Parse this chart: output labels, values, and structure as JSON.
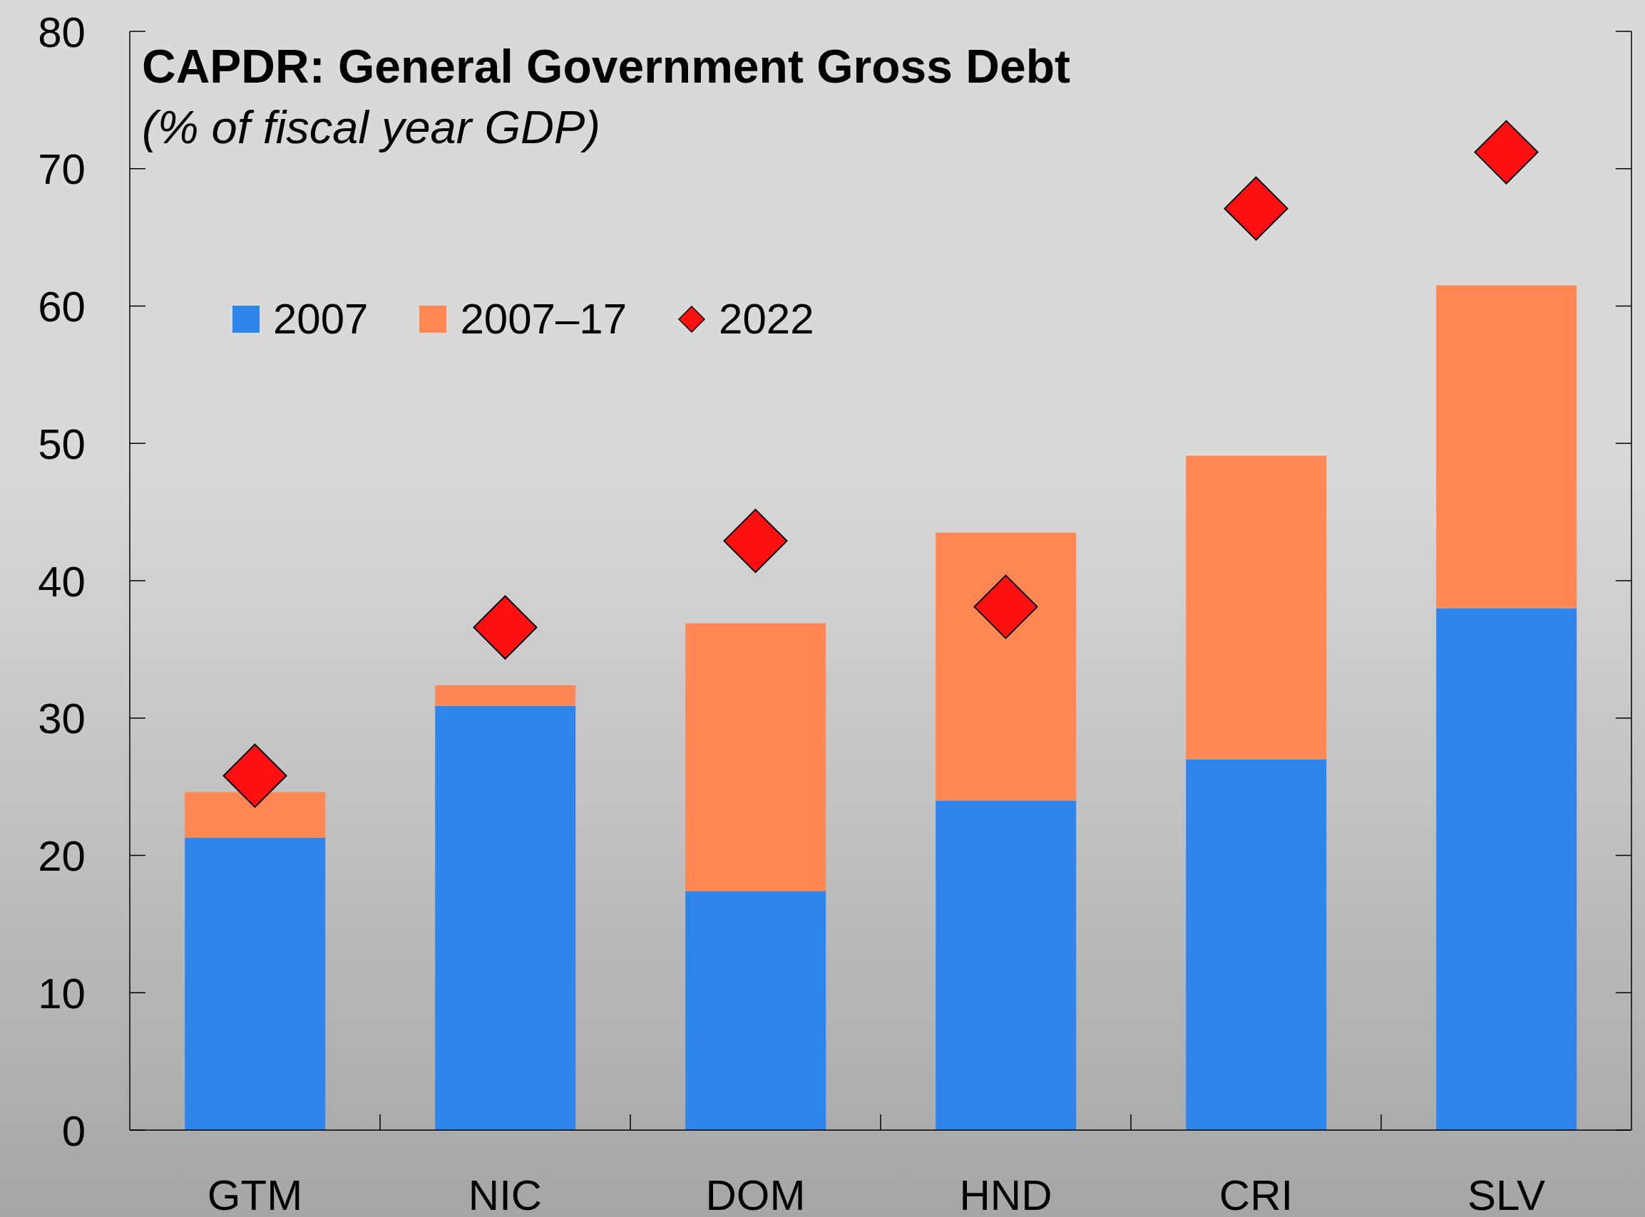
{
  "chart_data": {
    "type": "bar",
    "title": "CAPDR: General Government Gross Debt",
    "subtitle": "(% of fiscal year GDP)",
    "categories": [
      "GTM",
      "NIC",
      "DOM",
      "HND",
      "CRI",
      "SLV"
    ],
    "series": [
      {
        "name": "2007",
        "color": "#2e86ec",
        "values": [
          21.3,
          30.9,
          17.4,
          24.0,
          27.0,
          38.0
        ]
      },
      {
        "name": "2007–17",
        "color": "#ff8753",
        "values": [
          3.3,
          1.5,
          19.5,
          19.5,
          22.1,
          23.5
        ]
      },
      {
        "name": "2022",
        "type": "scatter",
        "marker": "diamond",
        "color": "#ff1010",
        "values": [
          25.8,
          36.6,
          42.9,
          38.1,
          67.1,
          71.2
        ]
      }
    ],
    "stacked": true,
    "ylim": [
      0,
      80
    ],
    "yticks": [
      0,
      10,
      20,
      30,
      40,
      50,
      60,
      70,
      80
    ],
    "legend": "top left"
  }
}
